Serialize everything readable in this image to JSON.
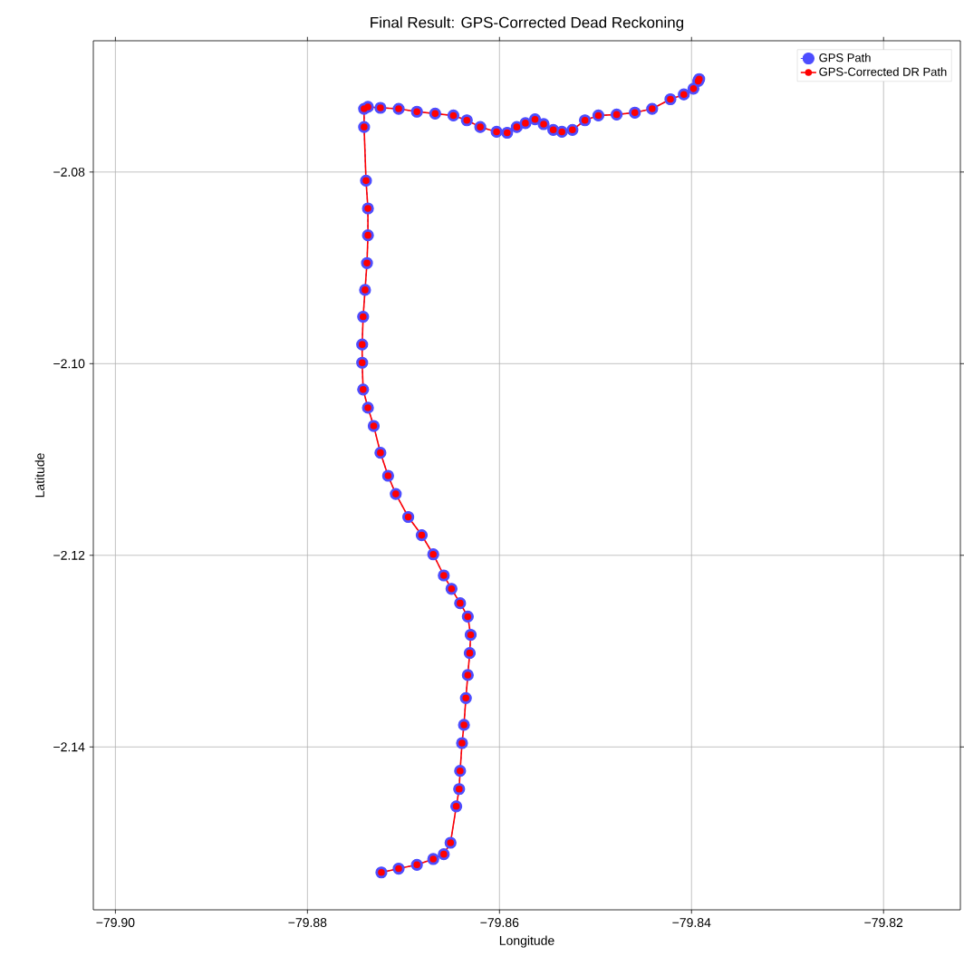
{
  "chart_data": {
    "type": "line",
    "title": "Final Result: GPS-Corrected Dead Reckoning",
    "xlabel": "Longitude",
    "ylabel": "Latitude",
    "x": [
      -79.8723,
      -79.8705,
      -79.8686,
      -79.8669,
      -79.8658,
      -79.8651,
      -79.8645,
      -79.8642,
      -79.8641,
      -79.8639,
      -79.8637,
      -79.8635,
      -79.8633,
      -79.8631,
      -79.863,
      -79.8633,
      -79.8641,
      -79.865,
      -79.8658,
      -79.8669,
      -79.8681,
      -79.8695,
      -79.8708,
      -79.8716,
      -79.8724,
      -79.8731,
      -79.8737,
      -79.8742,
      -79.8743,
      -79.8743,
      -79.8742,
      -79.874,
      -79.8738,
      -79.8737,
      -79.8737,
      -79.8739,
      -79.8741,
      -79.8741,
      -79.8737,
      -79.8724,
      -79.8705,
      -79.8686,
      -79.8667,
      -79.8648,
      -79.8634,
      -79.862,
      -79.8603,
      -79.8592,
      -79.8582,
      -79.8573,
      -79.8563,
      -79.8554,
      -79.8544,
      -79.8535,
      -79.8524,
      -79.8511,
      -79.8497,
      -79.8478,
      -79.8459,
      -79.8441,
      -79.8422,
      -79.8408,
      -79.8398,
      -79.8393,
      -79.8392
    ],
    "series": [
      {
        "name": "GPS Path",
        "color": "#4d4dff",
        "marker": "circle",
        "line_style": "dashed",
        "values": [
          -2.1531,
          -2.1527,
          -2.1523,
          -2.1517,
          -2.1512,
          -2.15,
          -2.1462,
          -2.1444,
          -2.1425,
          -2.1396,
          -2.1377,
          -2.1349,
          -2.1325,
          -2.1302,
          -2.1283,
          -2.1264,
          -2.125,
          -2.1235,
          -2.1221,
          -2.1199,
          -2.1179,
          -2.116,
          -2.1136,
          -2.1117,
          -2.1093,
          -2.1065,
          -2.1046,
          -2.1027,
          -2.0999,
          -2.098,
          -2.0951,
          -2.0923,
          -2.0895,
          -2.0866,
          -2.0838,
          -2.0809,
          -2.0753,
          -2.0734,
          -2.0732,
          -2.0733,
          -2.0734,
          -2.0737,
          -2.0739,
          -2.0741,
          -2.0746,
          -2.0753,
          -2.0758,
          -2.0759,
          -2.0753,
          -2.0749,
          -2.0745,
          -2.075,
          -2.0756,
          -2.0758,
          -2.0756,
          -2.0746,
          -2.0741,
          -2.074,
          -2.0738,
          -2.0734,
          -2.0724,
          -2.0719,
          -2.0713,
          -2.0705,
          -2.0703
        ]
      },
      {
        "name": "GPS-Corrected DR Path",
        "color": "#ff0000",
        "marker": "circle",
        "line_style": "solid",
        "values": [
          -2.1531,
          -2.1527,
          -2.1523,
          -2.1517,
          -2.1512,
          -2.15,
          -2.1462,
          -2.1444,
          -2.1425,
          -2.1396,
          -2.1377,
          -2.1349,
          -2.1325,
          -2.1302,
          -2.1283,
          -2.1264,
          -2.125,
          -2.1235,
          -2.1221,
          -2.1199,
          -2.1179,
          -2.116,
          -2.1136,
          -2.1117,
          -2.1093,
          -2.1065,
          -2.1046,
          -2.1027,
          -2.0999,
          -2.098,
          -2.0951,
          -2.0923,
          -2.0895,
          -2.0866,
          -2.0838,
          -2.0809,
          -2.0753,
          -2.0734,
          -2.0732,
          -2.0733,
          -2.0734,
          -2.0737,
          -2.0739,
          -2.0741,
          -2.0746,
          -2.0753,
          -2.0758,
          -2.0759,
          -2.0753,
          -2.0749,
          -2.0745,
          -2.075,
          -2.0756,
          -2.0758,
          -2.0756,
          -2.0746,
          -2.0741,
          -2.074,
          -2.0738,
          -2.0734,
          -2.0724,
          -2.0719,
          -2.0713,
          -2.0705,
          -2.0703
        ]
      }
    ],
    "xlim": [
      -79.9023,
      -79.812
    ],
    "ylim": [
      -2.157,
      -2.0663
    ],
    "xticks": [
      {
        "value": -79.9,
        "label": "−79.90"
      },
      {
        "value": -79.88,
        "label": "−79.88"
      },
      {
        "value": -79.86,
        "label": "−79.86"
      },
      {
        "value": -79.84,
        "label": "−79.84"
      },
      {
        "value": -79.82,
        "label": "−79.82"
      }
    ],
    "yticks": [
      {
        "value": -2.14,
        "label": "−2.14"
      },
      {
        "value": -2.12,
        "label": "−2.12"
      },
      {
        "value": -2.1,
        "label": "−2.10"
      },
      {
        "value": -2.08,
        "label": "−2.08"
      }
    ],
    "grid": true,
    "legend": "top right"
  }
}
